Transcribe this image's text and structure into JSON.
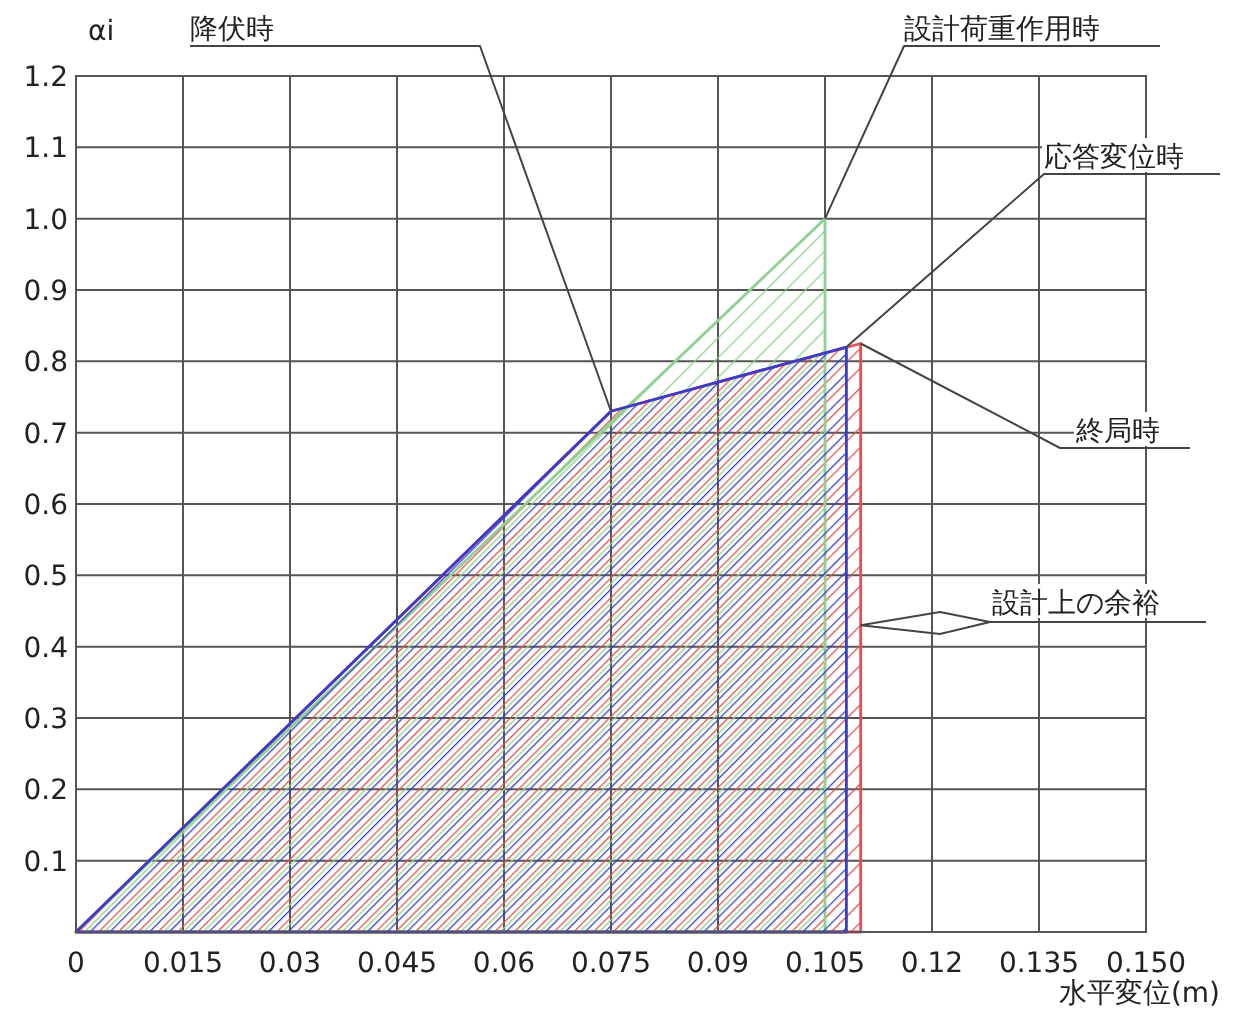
{
  "chart_data": {
    "type": "area",
    "xlabel": "水平変位(m)",
    "ylabel": "αi",
    "xlim": [
      0,
      0.15
    ],
    "ylim": [
      0,
      1.2
    ],
    "xticks": [
      0,
      0.015,
      0.03,
      0.045,
      0.06,
      0.075,
      0.09,
      0.105,
      0.12,
      0.135,
      {
        "value": 0.15,
        "label": "0.150"
      }
    ],
    "yticks": [
      0.1,
      0.2,
      0.3,
      0.4,
      0.5,
      0.6,
      0.7,
      0.8,
      0.9,
      {
        "value": 1,
        "label": "1.0"
      },
      1.1,
      1.2
    ],
    "grid": true,
    "series": [
      {
        "color": "#e05050",
        "x": [
          0,
          0.075,
          0.11,
          0.11
        ],
        "values": [
          0,
          0.73,
          0.825,
          0
        ]
      },
      {
        "color": "#90d090",
        "x": [
          0,
          0.105,
          0.105
        ],
        "values": [
          0,
          1.0,
          0
        ]
      },
      {
        "color": "#3c3cc8",
        "x": [
          0,
          0.075,
          0.108,
          0.108
        ],
        "values": [
          0,
          0.73,
          0.82,
          0
        ]
      }
    ],
    "annotations": [
      {
        "text": "降伏時",
        "x": 0.075,
        "y": 0.73
      },
      {
        "text": "設計荷重作用時",
        "x": 0.105,
        "y": 1.0
      },
      {
        "text": "応答変位時",
        "x": 0.108,
        "y": 0.82
      },
      {
        "text": "終局時",
        "x": 0.11,
        "y": 0.825
      },
      {
        "text": "設計上の余裕",
        "x": 0.11,
        "y": 0.43
      }
    ]
  }
}
